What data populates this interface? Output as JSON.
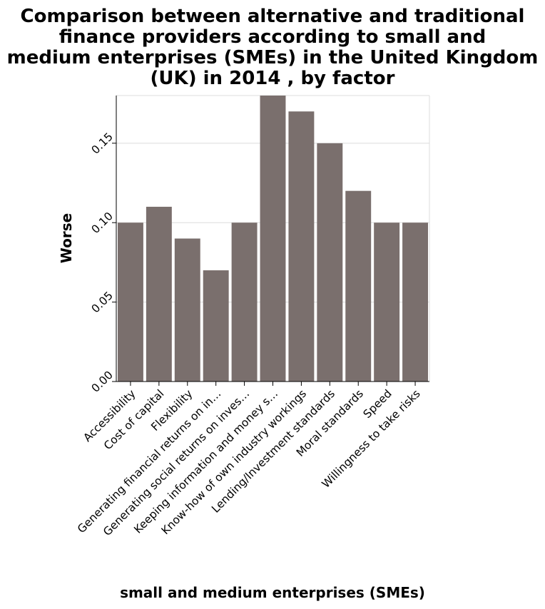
{
  "chart_data": {
    "type": "bar",
    "title_lines": [
      "Comparison between alternative and traditional",
      "finance providers according to small and",
      "medium enterprises (SMEs) in the United Kingdom",
      "(UK) in 2014 , by factor"
    ],
    "xlabel": "small and medium enterprises (SMEs)",
    "ylabel": "Worse",
    "ylim": [
      0,
      0.18
    ],
    "yticks": [
      "0.00",
      "0.05",
      "0.10",
      "0.15"
    ],
    "ytick_values": [
      0,
      0.05,
      0.1,
      0.15
    ],
    "grid": true,
    "categories": [
      "Accessibility",
      "Cost of capital",
      "Flexibility",
      "Generating financial returns on in…",
      "Generating social returns on inves…",
      "Keeping information and money s…",
      "Know-how of own industry workings",
      "Lending/Investment standards",
      "Moral standards",
      "Speed",
      "Willingness to take risks"
    ],
    "values": [
      0.1,
      0.11,
      0.09,
      0.07,
      0.1,
      0.18,
      0.17,
      0.15,
      0.12,
      0.1,
      0.1
    ],
    "colors": {
      "bar": "#7a6f6d",
      "grid": "#dcdcdc"
    }
  }
}
